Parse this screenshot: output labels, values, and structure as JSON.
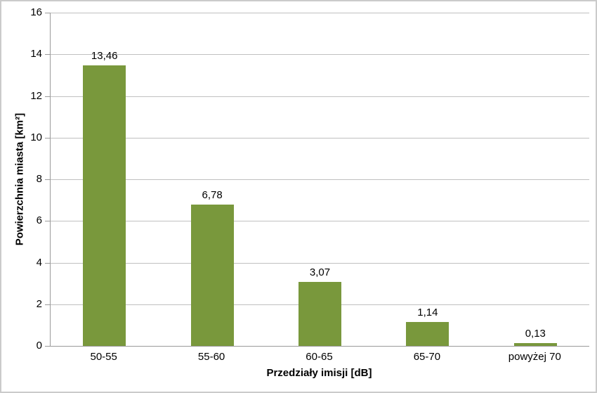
{
  "frame": {
    "border_color": "#CBCBCB",
    "background": "#FFFFFF"
  },
  "chart_data": {
    "type": "bar",
    "title": "",
    "categories": [
      "50-55",
      "55-60",
      "60-65",
      "65-70",
      "powyżej 70"
    ],
    "values": [
      13.46,
      6.78,
      3.07,
      1.14,
      0.13
    ],
    "value_labels": [
      "13,46",
      "6,78",
      "3,07",
      "1,14",
      "0,13"
    ],
    "xlabel": "Przedziały imisji [dB]",
    "ylabel": "Powierzchnia miasta [km²]",
    "ylim": [
      0,
      16
    ],
    "ytick_step": 2,
    "ytick_labels": [
      "0",
      "2",
      "4",
      "6",
      "8",
      "10",
      "12",
      "14",
      "16"
    ],
    "grid": true,
    "legend": false,
    "bar_color": "#79983C",
    "gridline_color": "#C0C0C0",
    "axis_color": "#9A9A9A",
    "label_color": "#000000"
  }
}
